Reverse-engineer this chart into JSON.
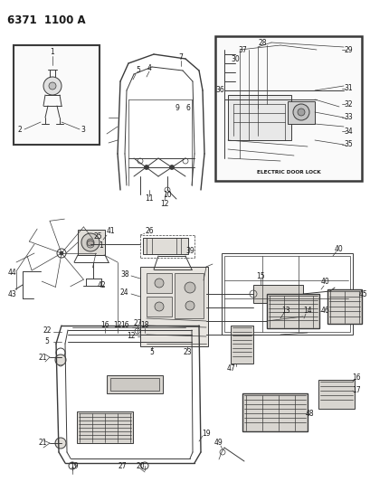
{
  "title": "6371  1100 A",
  "bg_color": "#ffffff",
  "line_color": "#3a3a3a",
  "label_fontsize": 5.5,
  "figsize": [
    4.1,
    5.33
  ],
  "dpi": 100,
  "electric_door_lock_label": "ELECTRIC DOOR LOCK",
  "inset1_label": "1",
  "inset1_parts": [
    "1",
    "2",
    "3"
  ],
  "inset2_parts": [
    "28",
    "29",
    "30",
    "31",
    "32",
    "33",
    "34",
    "35",
    "36",
    "37"
  ]
}
